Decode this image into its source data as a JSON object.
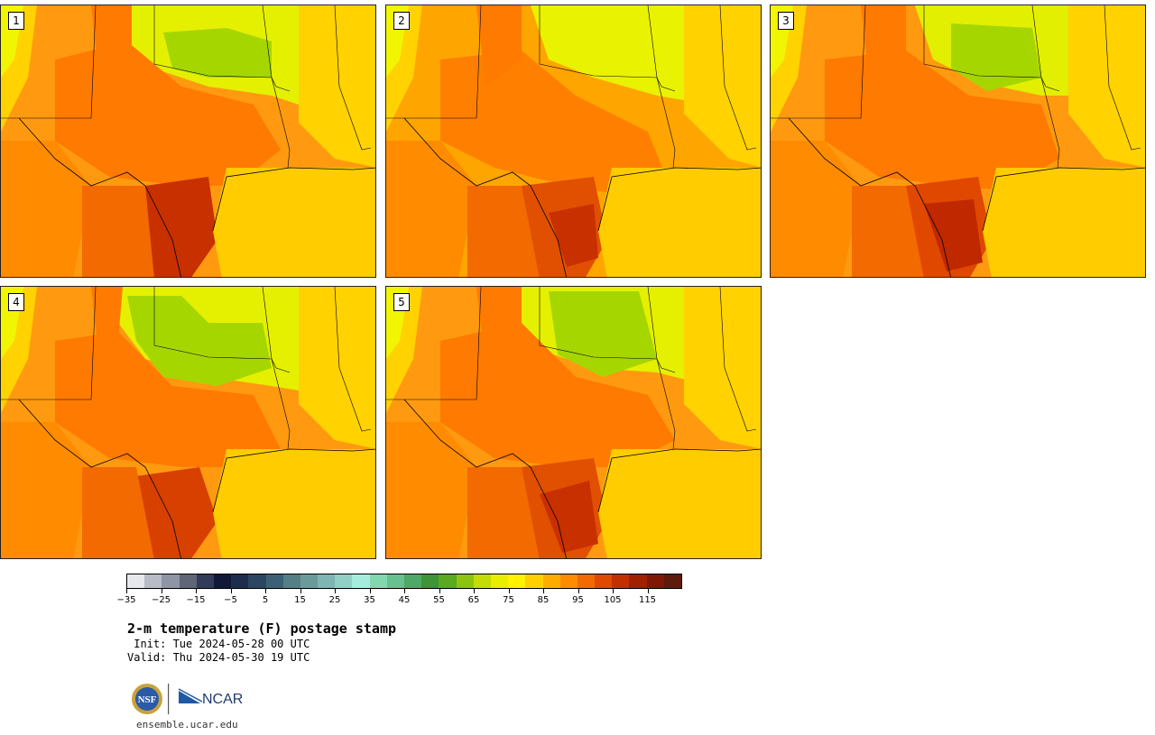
{
  "panels": [
    {
      "label": "1"
    },
    {
      "label": "2"
    },
    {
      "label": "3"
    },
    {
      "label": "4"
    },
    {
      "label": "5"
    }
  ],
  "colorbar": {
    "ticks": [
      "−35",
      "−25",
      "−15",
      "−5",
      "5",
      "15",
      "25",
      "35",
      "45",
      "55",
      "65",
      "75",
      "85",
      "95",
      "105",
      "115"
    ],
    "colors": [
      "#e6e8ec",
      "#b8bcc6",
      "#8f95a4",
      "#5e6678",
      "#323b58",
      "#101a38",
      "#1c2d4e",
      "#2b4662",
      "#3d6174",
      "#547f86",
      "#6b9a9a",
      "#7fb5b2",
      "#92d0c6",
      "#a6ecdc",
      "#82d7ae",
      "#67c08e",
      "#4fa866",
      "#3e9436",
      "#5aa91e",
      "#8dc40f",
      "#c2dc05",
      "#e9ee00",
      "#fff200",
      "#ffd000",
      "#ffac00",
      "#ff8c00",
      "#f26a00",
      "#df4a00",
      "#c23000",
      "#a02000",
      "#801806",
      "#5e1a0a"
    ]
  },
  "title": "2-m temperature (F) postage stamp",
  "init": " Init: Tue 2024-05-28 00 UTC",
  "valid": "Valid: Thu 2024-05-30 19 UTC",
  "logos": {
    "nsf": "NSF",
    "ncar": "NCAR"
  },
  "url": "ensemble.ucar.edu"
}
